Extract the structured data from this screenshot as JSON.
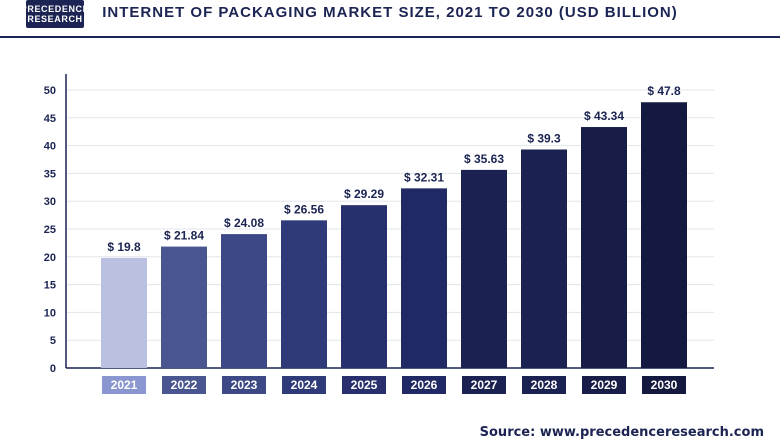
{
  "header": {
    "logo_line1": "PRECEDENCE",
    "logo_line2": "RESEARCH",
    "title": "INTERNET OF PACKAGING MARKET SIZE, 2021 TO 2030 (USD BILLION)"
  },
  "footer": {
    "source": "Source: www.precedenceresearch.com"
  },
  "chart_data": {
    "type": "bar",
    "title": "INTERNET OF PACKAGING MARKET SIZE, 2021 TO 2030 (USD BILLION)",
    "xlabel": "",
    "ylabel": "",
    "categories": [
      "2021",
      "2022",
      "2023",
      "2024",
      "2025",
      "2026",
      "2027",
      "2028",
      "2029",
      "2030"
    ],
    "values": [
      19.8,
      21.84,
      24.08,
      26.56,
      29.29,
      32.31,
      35.63,
      39.3,
      43.34,
      47.8
    ],
    "value_labels": [
      "$ 19.8",
      "$ 21.84",
      "$ 24.08",
      "$ 26.56",
      "$ 29.29",
      "$ 32.31",
      "$ 35.63",
      "$ 39.3",
      "$ 43.34",
      "$ 47.8"
    ],
    "yticks": [
      0,
      5,
      10,
      15,
      20,
      25,
      30,
      35,
      40,
      45,
      50
    ],
    "ylim": [
      0,
      50
    ],
    "grid": true,
    "bar_colors": [
      "#b9c0e0",
      "#4a5690",
      "#3d4887",
      "#2f3a78",
      "#27306c",
      "#202963",
      "#1b2252",
      "#1b2252",
      "#171d47",
      "#141a3f"
    ],
    "category_box_colors": [
      "#8a96cf",
      "#4a5690",
      "#3d4887",
      "#2f3a78",
      "#27306c",
      "#202963",
      "#1b2252",
      "#1b2252",
      "#171d47",
      "#141a3f"
    ]
  }
}
